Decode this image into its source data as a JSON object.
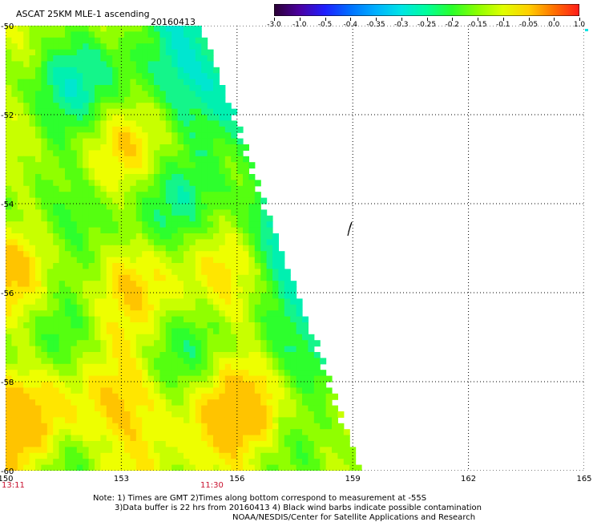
{
  "header": {
    "title": "ASCAT 25KM MLE-1 ascending",
    "date": "20160413"
  },
  "colorbar": {
    "labels": [
      "-3.0",
      "-1.0",
      "-0.5",
      "-0.4",
      "-0.35",
      "-0.3",
      "-0.25",
      "-0.2",
      "-0.15",
      "-0.1",
      "-0.05",
      "0.0",
      "1.0"
    ],
    "colors": [
      "#2a0033",
      "#4b00a0",
      "#1f1fff",
      "#0070ff",
      "#00b0ff",
      "#00e5e5",
      "#00ff9a",
      "#2aff2a",
      "#8cff00",
      "#e0ff00",
      "#ffd000",
      "#ff7000",
      "#ff1a1a"
    ]
  },
  "map": {
    "lat_labels": [
      "-50",
      "-52",
      "-54",
      "-56",
      "-58",
      "-60"
    ],
    "lon_labels": [
      "150",
      "153",
      "156",
      "159",
      "162",
      "165"
    ],
    "time_labels": [
      "13:11",
      "11:30"
    ],
    "wind_barb_icon": "wind-barb-icon"
  },
  "notes": {
    "line1": "Note: 1) Times are GMT 2)Times along bottom correspond to measurement at -55S",
    "line2": "3)Data buffer is 22 hrs from 20160413 4) Black wind barbs indicate possible contamination",
    "line3": "NOAA/NESDIS/Center for Satellite Applications and Research"
  }
}
